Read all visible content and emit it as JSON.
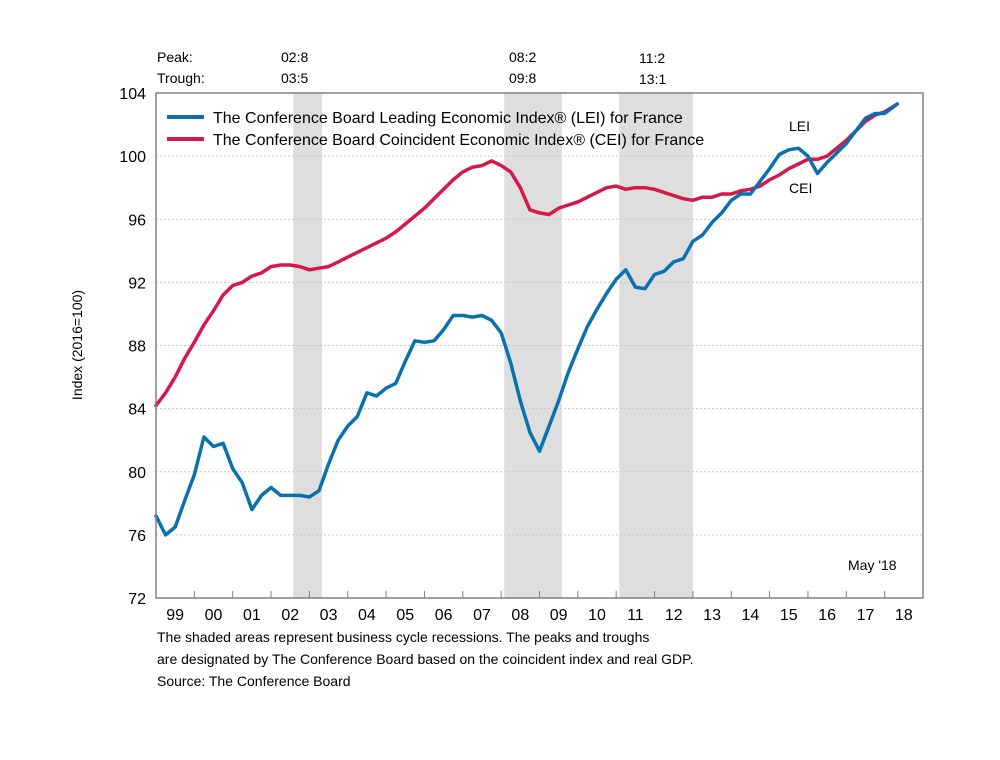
{
  "chart_data": {
    "type": "line",
    "title": "",
    "xlabel": "",
    "ylabel": "Index (2016=100)",
    "ylim": [
      72,
      104
    ],
    "xlim": [
      1999.0,
      2019.0
    ],
    "yticks": [
      72,
      76,
      80,
      84,
      88,
      92,
      96,
      100,
      104
    ],
    "ytick_labels": [
      "72",
      "76",
      "80",
      "84",
      "88",
      "92",
      "96",
      "100",
      "104"
    ],
    "xtick_labels": [
      "99",
      "00",
      "01",
      "02",
      "03",
      "04",
      "05",
      "06",
      "07",
      "08",
      "09",
      "10",
      "11",
      "12",
      "13",
      "14",
      "15",
      "16",
      "17",
      "18"
    ],
    "grid": "horizontal-dotted",
    "legend_position": "top-left",
    "cycle_header": {
      "peak_label": "Peak:",
      "trough_label": "Trough:",
      "peaks": [
        "02:8",
        "08:2",
        "11:2"
      ],
      "troughs": [
        "03:5",
        "09:8",
        "13:1"
      ]
    },
    "recessions": [
      {
        "start": 2002.58,
        "end": 2003.33
      },
      {
        "start": 2008.08,
        "end": 2009.58
      },
      {
        "start": 2011.08,
        "end": 2013.0
      }
    ],
    "annotations": [
      {
        "text": "LEI",
        "x": 2015.3,
        "y": 101.4
      },
      {
        "text": "CEI",
        "x": 2016.3,
        "y": 97.1
      },
      {
        "text": "May '18",
        "x": 2018.3,
        "y": 74.3
      }
    ],
    "series": [
      {
        "name": "The Conference Board Leading Economic Index® (LEI) for France",
        "color": "#0a70b0",
        "x": [
          1999.0,
          1999.25,
          1999.5,
          1999.75,
          2000.0,
          2000.25,
          2000.5,
          2000.75,
          2001.0,
          2001.25,
          2001.5,
          2001.75,
          2002.0,
          2002.25,
          2002.5,
          2002.75,
          2003.0,
          2003.25,
          2003.5,
          2003.75,
          2004.0,
          2004.25,
          2004.5,
          2004.75,
          2005.0,
          2005.25,
          2005.5,
          2005.75,
          2006.0,
          2006.25,
          2006.5,
          2006.75,
          2007.0,
          2007.25,
          2007.5,
          2007.75,
          2008.0,
          2008.25,
          2008.5,
          2008.75,
          2009.0,
          2009.25,
          2009.5,
          2009.75,
          2010.0,
          2010.25,
          2010.5,
          2010.75,
          2011.0,
          2011.25,
          2011.5,
          2011.75,
          2012.0,
          2012.25,
          2012.5,
          2012.75,
          2013.0,
          2013.25,
          2013.5,
          2013.75,
          2014.0,
          2014.25,
          2014.5,
          2014.75,
          2015.0,
          2015.25,
          2015.5,
          2015.75,
          2016.0,
          2016.25,
          2016.5,
          2016.75,
          2017.0,
          2017.25,
          2017.5,
          2017.75,
          2018.0,
          2018.33
        ],
        "values": [
          77.2,
          76.0,
          76.5,
          78.2,
          79.8,
          82.2,
          81.6,
          81.8,
          80.2,
          79.3,
          77.6,
          78.5,
          79.0,
          78.5,
          78.5,
          78.5,
          78.4,
          78.8,
          80.5,
          82.0,
          82.9,
          83.5,
          85.0,
          84.8,
          85.3,
          85.6,
          87.0,
          88.3,
          88.2,
          88.3,
          89.0,
          89.9,
          89.9,
          89.8,
          89.9,
          89.6,
          88.8,
          86.9,
          84.5,
          82.5,
          81.3,
          82.9,
          84.5,
          86.3,
          87.8,
          89.2,
          90.3,
          91.3,
          92.2,
          92.8,
          91.7,
          91.6,
          92.5,
          92.7,
          93.3,
          93.5,
          94.6,
          95.0,
          95.8,
          96.4,
          97.2,
          97.6,
          97.6,
          98.4,
          99.2,
          100.1,
          100.4,
          100.5,
          100.0,
          98.9,
          99.6,
          100.2,
          100.8,
          101.6,
          102.4,
          102.7,
          102.7,
          103.3
        ]
      },
      {
        "name": "The Conference Board Coincident Economic Index® (CEI) for France",
        "color": "#d5174b",
        "x": [
          1999.0,
          1999.25,
          1999.5,
          1999.75,
          2000.0,
          2000.25,
          2000.5,
          2000.75,
          2001.0,
          2001.25,
          2001.5,
          2001.75,
          2002.0,
          2002.25,
          2002.5,
          2002.75,
          2003.0,
          2003.25,
          2003.5,
          2003.75,
          2004.0,
          2004.25,
          2004.5,
          2004.75,
          2005.0,
          2005.25,
          2005.5,
          2005.75,
          2006.0,
          2006.25,
          2006.5,
          2006.75,
          2007.0,
          2007.25,
          2007.5,
          2007.75,
          2008.0,
          2008.25,
          2008.5,
          2008.75,
          2009.0,
          2009.25,
          2009.5,
          2009.75,
          2010.0,
          2010.25,
          2010.5,
          2010.75,
          2011.0,
          2011.25,
          2011.5,
          2011.75,
          2012.0,
          2012.25,
          2012.5,
          2012.75,
          2013.0,
          2013.25,
          2013.5,
          2013.75,
          2014.0,
          2014.25,
          2014.5,
          2014.75,
          2015.0,
          2015.25,
          2015.5,
          2015.75,
          2016.0,
          2016.25,
          2016.5,
          2016.75,
          2017.0,
          2017.25,
          2017.5,
          2017.75,
          2018.0,
          2018.33
        ],
        "values": [
          84.2,
          85.0,
          86.0,
          87.2,
          88.2,
          89.3,
          90.2,
          91.2,
          91.8,
          92.0,
          92.4,
          92.6,
          93.0,
          93.1,
          93.1,
          93.0,
          92.8,
          92.9,
          93.0,
          93.3,
          93.6,
          93.9,
          94.2,
          94.5,
          94.8,
          95.2,
          95.7,
          96.2,
          96.7,
          97.3,
          97.9,
          98.5,
          99.0,
          99.3,
          99.4,
          99.7,
          99.4,
          99.0,
          98.0,
          96.6,
          96.4,
          96.3,
          96.7,
          96.9,
          97.1,
          97.4,
          97.7,
          98.0,
          98.1,
          97.9,
          98.0,
          98.0,
          97.9,
          97.7,
          97.5,
          97.3,
          97.2,
          97.4,
          97.4,
          97.6,
          97.6,
          97.8,
          97.9,
          98.1,
          98.5,
          98.8,
          99.2,
          99.5,
          99.8,
          99.8,
          100.0,
          100.5,
          101.0,
          101.6,
          102.2,
          102.6,
          102.8,
          103.3
        ]
      }
    ],
    "footnote": [
      "The shaded areas represent business cycle recessions. The peaks and troughs",
      "are designated by The Conference Board based on the coincident index and real GDP.",
      "Source: The Conference Board"
    ]
  }
}
